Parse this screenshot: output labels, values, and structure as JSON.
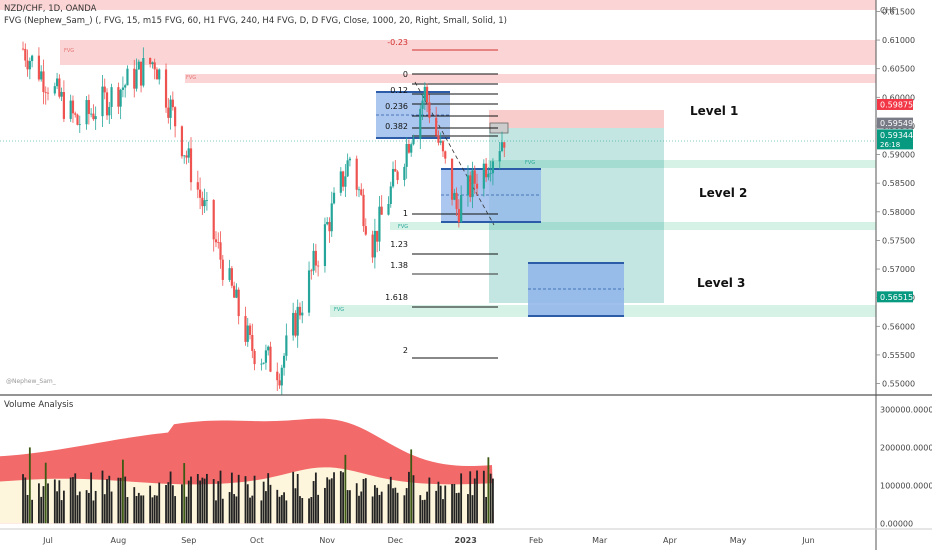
{
  "header": {
    "symbol": "NZD/CHF, 1D, OANDA",
    "indicator": "FVG (Nephew_Sam_) (, FVG, 15, m15 FVG, 60, H1 FVG, 240, H4 FVG, D, D FVG, Close, 1000, 20, Right, Small, Solid, 1)"
  },
  "currency": "CHF",
  "watermark": "@Nephew_Sam_",
  "levels": [
    "Level 1",
    "Level 2",
    "Level 3"
  ],
  "fvg_label": "FVG",
  "fib_labels": [
    "-0.23",
    "0",
    "0.12",
    "0.236",
    "0.382",
    "1",
    "1.23",
    "1.38",
    "1.618",
    "2"
  ],
  "colors": {
    "up": "#26a69a",
    "down": "#ef5350",
    "fvg_red": "#fbd5d5",
    "fvg_green": "#d6f2e6",
    "box_blue": "#8fb4ea",
    "vol_red": "#f36a6a",
    "vol_cream": "#fdf6dc"
  },
  "chart_data": [
    {
      "type": "candlestick",
      "title": "NZD/CHF, 1D, OANDA",
      "x_ticks": [
        "Jul",
        "Aug",
        "Sep",
        "Oct",
        "Nov",
        "Dec",
        "2023",
        "Feb",
        "Mar",
        "Apr",
        "May",
        "Jun"
      ],
      "y_ticks": [
        "0.61500",
        "0.61000",
        "0.60500",
        "0.60000",
        "0.59500",
        "0.59000",
        "0.58500",
        "0.58000",
        "0.57500",
        "0.57000",
        "0.56500",
        "0.56000",
        "0.55500",
        "0.55000"
      ],
      "ylim": [
        0.548,
        0.617
      ],
      "price_labels": [
        {
          "text": "0.59875",
          "value": 0.59875,
          "color": "#f23645"
        },
        {
          "text": "0.59549",
          "value": 0.59549,
          "color": "#787b86"
        },
        {
          "text": "0.59344",
          "value": 0.59344,
          "color": "#089981",
          "sub": "26:18"
        },
        {
          "text": "0.56515",
          "value": 0.56515,
          "color": "#089981"
        }
      ],
      "key_points": [
        {
          "date": "2022-06-20",
          "close": 0.6085
        },
        {
          "date": "2022-07-14",
          "close": 0.5955
        },
        {
          "date": "2022-08-17",
          "close": 0.6065
        },
        {
          "date": "2022-09-28",
          "close": 0.5565
        },
        {
          "date": "2022-10-11",
          "close": 0.5525
        },
        {
          "date": "2022-11-11",
          "close": 0.5895
        },
        {
          "date": "2022-11-21",
          "close": 0.5745
        },
        {
          "date": "2022-12-14",
          "close": 0.6008
        },
        {
          "date": "2022-12-28",
          "close": 0.5805
        },
        {
          "date": "2023-01-18",
          "close": 0.5934
        }
      ]
    },
    {
      "type": "bar",
      "title": "Volume Analysis",
      "y_ticks": [
        "300000.00000",
        "200000.00000",
        "100000.00000",
        "0.00000"
      ],
      "ylim": [
        -15000,
        330000
      ]
    }
  ]
}
